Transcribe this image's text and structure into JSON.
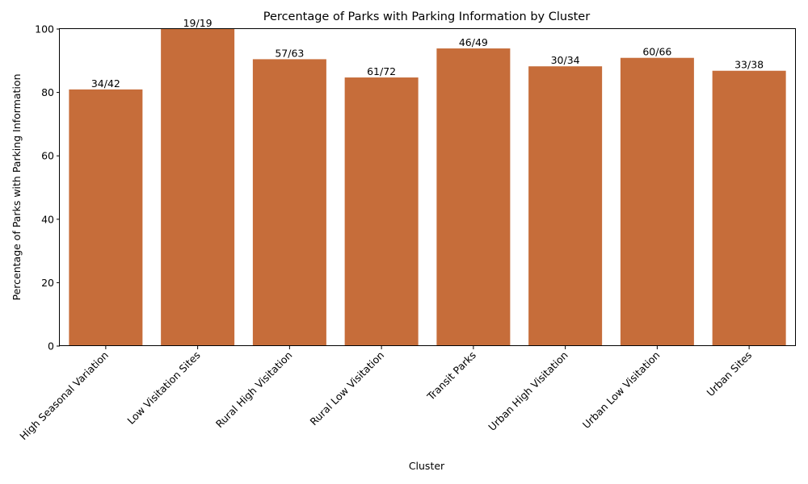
{
  "chart_data": {
    "type": "bar",
    "title": "Percentage of Parks with Parking Information by Cluster",
    "xlabel": "Cluster",
    "ylabel": "Percentage of Parks with Parking Information",
    "ylim": [
      0,
      100
    ],
    "yticks": [
      0,
      20,
      40,
      60,
      80,
      100
    ],
    "grid": false,
    "bar_color": "#c66d3a",
    "categories": [
      "High Seasonal Variation",
      "Low Visitation Sites",
      "Rural High Visitation",
      "Rural Low Visitation",
      "Transit Parks",
      "Urban High Visitation",
      "Urban Low Visitation",
      "Urban Sites"
    ],
    "values": [
      80.95,
      100.0,
      90.48,
      84.72,
      93.88,
      88.24,
      90.91,
      86.84
    ],
    "data_labels": [
      "34/42",
      "19/19",
      "57/63",
      "61/72",
      "46/49",
      "30/34",
      "60/66",
      "33/38"
    ]
  }
}
